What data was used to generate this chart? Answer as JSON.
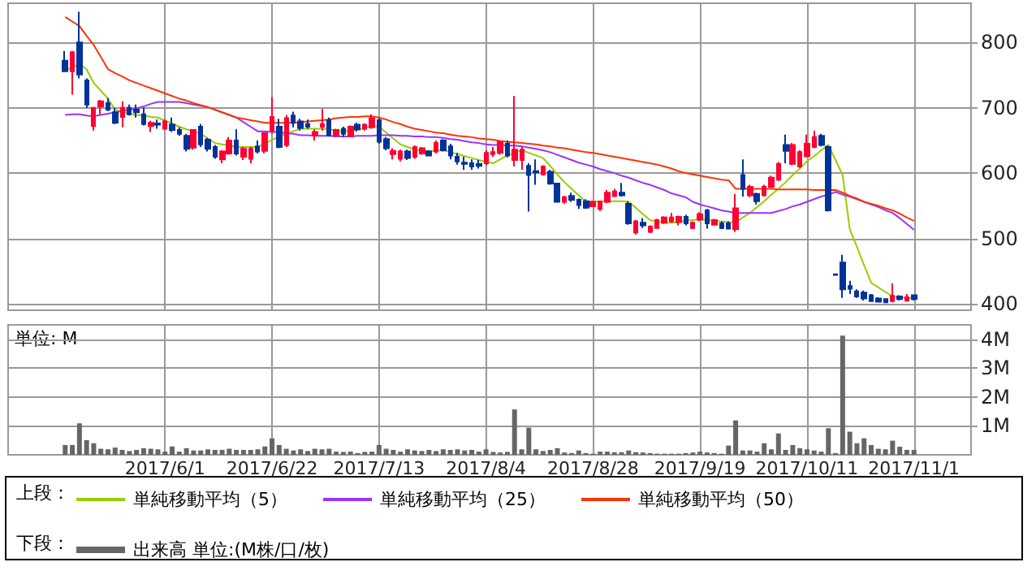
{
  "chart_data": [
    {
      "type": "candlestick",
      "legend_title": "上段：",
      "legend": "bottom",
      "grid": true,
      "tick_labels": "y",
      "categories": [
        null,
        null,
        null,
        null,
        null,
        null,
        null,
        null,
        null,
        null,
        null,
        null,
        null,
        null,
        "2017/6/1",
        null,
        null,
        null,
        null,
        null,
        null,
        null,
        null,
        null,
        null,
        null,
        null,
        null,
        null,
        "2017/6/22",
        null,
        null,
        null,
        null,
        null,
        null,
        null,
        null,
        null,
        null,
        null,
        null,
        null,
        null,
        "2017/7/13",
        null,
        null,
        null,
        null,
        null,
        null,
        null,
        null,
        null,
        null,
        null,
        null,
        null,
        null,
        "2017/8/4",
        null,
        null,
        null,
        null,
        null,
        null,
        null,
        null,
        null,
        null,
        null,
        null,
        null,
        null,
        "2017/8/28",
        null,
        null,
        null,
        null,
        null,
        null,
        null,
        null,
        null,
        null,
        null,
        null,
        null,
        null,
        "2017/9/19",
        null,
        null,
        null,
        null,
        null,
        null,
        null,
        null,
        null,
        null,
        null,
        null,
        null,
        null,
        "2017/10/11",
        null,
        null,
        null,
        null,
        null,
        null,
        null,
        null,
        null,
        null,
        null,
        null,
        null,
        null,
        "2017/11/1"
      ],
      "ylim": [
        390,
        860
      ],
      "yticks": [
        400,
        500,
        600,
        700,
        800
      ],
      "ohlc": [
        [
          772,
          787,
          755,
          756
        ],
        [
          756,
          787,
          720,
          785
        ],
        [
          800,
          847,
          745,
          751
        ],
        [
          742,
          745,
          700,
          705
        ],
        [
          672,
          700,
          665,
          700
        ],
        [
          702,
          712,
          690,
          710
        ],
        [
          707,
          715,
          695,
          697
        ],
        [
          693,
          700,
          675,
          677
        ],
        [
          686,
          710,
          670,
          700
        ],
        [
          700,
          705,
          688,
          690
        ],
        [
          697,
          705,
          685,
          693
        ],
        [
          690,
          700,
          673,
          675
        ],
        [
          672,
          680,
          663,
          677
        ],
        [
          676,
          682,
          668,
          674
        ],
        [
          668,
          682,
          666,
          679
        ],
        [
          674,
          685,
          663,
          666
        ],
        [
          666,
          670,
          657,
          660
        ],
        [
          657,
          660,
          633,
          637
        ],
        [
          639,
          667,
          636,
          666
        ],
        [
          671,
          675,
          640,
          644
        ],
        [
          651,
          654,
          633,
          637
        ],
        [
          640,
          643,
          622,
          625
        ],
        [
          621,
          635,
          615,
          633
        ],
        [
          630,
          655,
          628,
          650
        ],
        [
          650,
          667,
          627,
          630
        ],
        [
          625,
          640,
          620,
          637
        ],
        [
          622,
          640,
          615,
          637
        ],
        [
          641,
          650,
          630,
          633
        ],
        [
          634,
          662,
          630,
          661
        ],
        [
          665,
          716,
          660,
          686
        ],
        [
          671,
          683,
          638,
          640
        ],
        [
          643,
          689,
          640,
          684
        ],
        [
          688,
          694,
          670,
          677
        ],
        [
          679,
          683,
          665,
          669
        ],
        [
          675,
          682,
          668,
          671
        ],
        [
          658,
          667,
          650,
          663
        ],
        [
          671,
          698,
          665,
          675
        ],
        [
          681,
          685,
          656,
          658
        ],
        [
          658,
          668,
          655,
          666
        ],
        [
          668,
          671,
          655,
          660
        ],
        [
          656,
          673,
          655,
          671
        ],
        [
          674,
          677,
          664,
          667
        ],
        [
          668,
          676,
          665,
          674
        ],
        [
          670,
          690,
          668,
          684
        ],
        [
          681,
          684,
          645,
          648
        ],
        [
          652,
          655,
          635,
          638
        ],
        [
          629,
          638,
          621,
          634
        ],
        [
          622,
          636,
          618,
          633
        ],
        [
          633,
          636,
          620,
          623
        ],
        [
          625,
          642,
          622,
          640
        ],
        [
          630,
          640,
          628,
          638
        ],
        [
          633,
          635,
          626,
          627
        ],
        [
          633,
          650,
          630,
          646
        ],
        [
          650,
          652,
          633,
          635
        ],
        [
          641,
          645,
          621,
          627
        ],
        [
          625,
          631,
          613,
          618
        ],
        [
          616,
          625,
          605,
          614
        ],
        [
          615,
          621,
          605,
          610
        ],
        [
          614,
          620,
          607,
          611
        ],
        [
          615,
          635,
          612,
          631
        ],
        [
          629,
          640,
          625,
          632
        ],
        [
          631,
          650,
          628,
          648
        ],
        [
          645,
          650,
          624,
          627
        ],
        [
          620,
          718,
          610,
          636
        ],
        [
          620,
          640,
          605,
          636
        ],
        [
          611,
          615,
          541,
          597
        ],
        [
          603,
          621,
          582,
          601
        ],
        [
          598,
          612,
          596,
          610
        ],
        [
          602,
          605,
          582,
          584
        ],
        [
          584,
          585,
          555,
          556
        ],
        [
          556,
          565,
          553,
          563
        ],
        [
          565,
          570,
          556,
          559
        ],
        [
          559,
          561,
          545,
          551
        ],
        [
          557,
          560,
          545,
          547
        ],
        [
          549,
          558,
          548,
          556
        ],
        [
          545,
          558,
          542,
          556
        ],
        [
          556,
          574,
          554,
          570
        ],
        [
          565,
          576,
          563,
          572
        ],
        [
          570,
          585,
          564,
          566
        ],
        [
          553,
          557,
          521,
          523
        ],
        [
          509,
          528,
          506,
          526
        ],
        [
          524,
          531,
          516,
          520
        ],
        [
          510,
          520,
          508,
          518
        ],
        [
          516,
          530,
          515,
          528
        ],
        [
          524,
          534,
          522,
          532
        ],
        [
          526,
          539,
          524,
          532
        ],
        [
          525,
          535,
          520,
          533
        ],
        [
          533,
          536,
          520,
          523
        ],
        [
          516,
          526,
          514,
          524
        ],
        [
          529,
          540,
          526,
          537
        ],
        [
          543,
          545,
          515,
          523
        ],
        [
          521,
          530,
          520,
          528
        ],
        [
          523,
          526,
          514,
          516
        ],
        [
          523,
          526,
          514,
          515
        ],
        [
          514,
          568,
          510,
          546
        ],
        [
          597,
          621,
          564,
          576
        ],
        [
          566,
          582,
          563,
          579
        ],
        [
          568,
          570,
          552,
          557
        ],
        [
          566,
          582,
          564,
          579
        ],
        [
          579,
          596,
          577,
          593
        ],
        [
          590,
          617,
          588,
          614
        ],
        [
          643,
          659,
          615,
          634
        ],
        [
          614,
          646,
          612,
          643
        ],
        [
          610,
          635,
          608,
          632
        ],
        [
          626,
          659,
          624,
          645
        ],
        [
          640,
          665,
          638,
          655
        ],
        [
          657,
          660,
          641,
          643
        ],
        [
          640,
          642,
          541,
          543
        ],
        [
          445,
          446,
          443,
          444
        ],
        [
          463,
          475,
          409,
          422
        ],
        [
          427,
          435,
          415,
          423
        ],
        [
          419,
          422,
          409,
          411
        ],
        [
          417,
          420,
          405,
          408
        ],
        [
          413,
          415,
          403,
          404
        ],
        [
          408,
          410,
          402,
          403
        ],
        [
          407,
          408,
          401,
          402
        ],
        [
          404,
          431,
          402,
          412
        ],
        [
          411,
          413,
          405,
          407
        ],
        [
          405,
          415,
          403,
          410
        ],
        [
          413,
          414,
          405,
          407
        ]
      ],
      "colors": [
        "#003399",
        "#ff0033",
        "#003399",
        "#003399",
        "#ff0033",
        "#ff0033",
        "#003399",
        "#003399",
        "#ff0033",
        "#003399",
        "#003399",
        "#003399",
        "#ff0033",
        "#003399",
        "#ff0033",
        "#003399",
        "#003399",
        "#003399",
        "#ff0033",
        "#003399",
        "#003399",
        "#003399",
        "#ff0033",
        "#ff0033",
        "#003399",
        "#ff0033",
        "#ff0033",
        "#003399",
        "#ff0033",
        "#ff0033",
        "#003399",
        "#ff0033",
        "#003399",
        "#003399",
        "#003399",
        "#ff0033",
        "#ff0033",
        "#003399",
        "#ff0033",
        "#003399",
        "#ff0033",
        "#003399",
        "#ff0033",
        "#ff0033",
        "#003399",
        "#003399",
        "#ff0033",
        "#ff0033",
        "#003399",
        "#ff0033",
        "#ff0033",
        "#003399",
        "#ff0033",
        "#003399",
        "#003399",
        "#003399",
        "#003399",
        "#003399",
        "#003399",
        "#ff0033",
        "#ff0033",
        "#ff0033",
        "#003399",
        "#ff0033",
        "#ff0033",
        "#003399",
        "#003399",
        "#ff0033",
        "#003399",
        "#003399",
        "#ff0033",
        "#003399",
        "#003399",
        "#003399",
        "#ff0033",
        "#ff0033",
        "#ff0033",
        "#ff0033",
        "#003399",
        "#003399",
        "#ff0033",
        "#003399",
        "#ff0033",
        "#ff0033",
        "#ff0033",
        "#ff0033",
        "#ff0033",
        "#003399",
        "#ff0033",
        "#ff0033",
        "#003399",
        "#ff0033",
        "#003399",
        "#003399",
        "#ff0033",
        "#003399",
        "#ff0033",
        "#003399",
        "#ff0033",
        "#ff0033",
        "#ff0033",
        "#003399",
        "#ff0033",
        "#ff0033",
        "#ff0033",
        "#ff0033",
        "#003399",
        "#003399",
        "#003399",
        "#003399",
        "#003399",
        "#003399",
        "#003399",
        "#003399",
        "#003399",
        "#003399",
        "#ff0033",
        "#003399",
        "#ff0033",
        "#003399"
      ],
      "series": [
        {
          "type": "line",
          "name": "単純移動平均（5）",
          "color": "#99cc00",
          "values": [
            757,
            762,
            767,
            759,
            738,
            726,
            714,
            697,
            694,
            691,
            689,
            688,
            686,
            685,
            680,
            676,
            671,
            667,
            664,
            660,
            653,
            646,
            644,
            642,
            640,
            640,
            640,
            640,
            645,
            651,
            656,
            660,
            664,
            668,
            668,
            668,
            668,
            667,
            665,
            664,
            665,
            666,
            669,
            672,
            671,
            662,
            653,
            644,
            640,
            636,
            633,
            634,
            634,
            635,
            632,
            629,
            626,
            623,
            620,
            617,
            615,
            621,
            627,
            631,
            635,
            631,
            627,
            623,
            611,
            598,
            586,
            576,
            566,
            556,
            556,
            557,
            557,
            557,
            557,
            556,
            547,
            537,
            528,
            526,
            524,
            524,
            525,
            527,
            528,
            529,
            528,
            527,
            526,
            525,
            524,
            532,
            539,
            548,
            557,
            567,
            576,
            586,
            597,
            607,
            618,
            626,
            635,
            643,
            620,
            597,
            514,
            487,
            459,
            432,
            425,
            418,
            411,
            410,
            409,
            408
          ]
        },
        {
          "type": "line",
          "name": "単純移動平均（25）",
          "color": "#9933ff",
          "values": [
            689,
            690,
            690,
            688,
            687,
            689,
            691,
            693,
            695,
            697,
            699,
            702,
            706,
            709,
            709,
            709,
            709,
            707,
            705,
            703,
            701,
            697,
            693,
            689,
            685,
            678,
            671,
            664,
            664,
            663,
            663,
            661,
            660,
            658,
            658,
            657,
            657,
            657,
            656,
            656,
            656,
            657,
            657,
            657,
            658,
            658,
            658,
            657,
            657,
            656,
            656,
            655,
            655,
            654,
            652,
            651,
            649,
            647,
            646,
            644,
            643,
            643,
            642,
            642,
            641,
            639,
            637,
            635,
            632,
            628,
            624,
            620,
            616,
            613,
            610,
            606,
            603,
            600,
            596,
            593,
            589,
            585,
            582,
            578,
            574,
            569,
            566,
            563,
            556,
            552,
            549,
            546,
            543,
            541,
            539,
            539,
            539,
            539,
            539,
            539,
            542,
            545,
            549,
            552,
            556,
            560,
            564,
            567,
            571,
            567,
            564,
            560,
            556,
            552,
            548,
            543,
            539,
            531,
            522,
            513
          ]
        },
        {
          "type": "line",
          "name": "単純移動平均（50）",
          "color": "#ff3300",
          "values": [
            839,
            832,
            825,
            810,
            796,
            778,
            759,
            753,
            748,
            742,
            738,
            734,
            730,
            726,
            722,
            718,
            714,
            711,
            707,
            704,
            701,
            697,
            693,
            689,
            685,
            683,
            681,
            679,
            677,
            677,
            677,
            677,
            677,
            678,
            679,
            680,
            681,
            682,
            684,
            685,
            686,
            686,
            687,
            687,
            685,
            682,
            678,
            675,
            671,
            668,
            666,
            664,
            662,
            661,
            659,
            657,
            656,
            655,
            653,
            652,
            651,
            649,
            648,
            647,
            646,
            645,
            644,
            642,
            641,
            639,
            638,
            636,
            634,
            632,
            631,
            629,
            627,
            625,
            623,
            621,
            619,
            617,
            615,
            613,
            610,
            607,
            603,
            600,
            598,
            596,
            594,
            592,
            590,
            589,
            576,
            576,
            576,
            576,
            576,
            576,
            575,
            575,
            575,
            575,
            575,
            574,
            574,
            574,
            574,
            570,
            565,
            561,
            556,
            553,
            550,
            546,
            543,
            538,
            532,
            527
          ]
        }
      ]
    },
    {
      "type": "bar",
      "legend_title": "下段：",
      "legend": "bottom",
      "grid": true,
      "annotations": [
        "単位: M"
      ],
      "categories": [
        null,
        null,
        null,
        null,
        null,
        null,
        null,
        null,
        null,
        null,
        null,
        null,
        null,
        null,
        "2017/6/1",
        null,
        null,
        null,
        null,
        null,
        null,
        null,
        null,
        null,
        null,
        null,
        null,
        null,
        null,
        "2017/6/22",
        null,
        null,
        null,
        null,
        null,
        null,
        null,
        null,
        null,
        null,
        null,
        null,
        null,
        null,
        "2017/7/13",
        null,
        null,
        null,
        null,
        null,
        null,
        null,
        null,
        null,
        null,
        null,
        null,
        null,
        null,
        "2017/8/4",
        null,
        null,
        null,
        null,
        null,
        null,
        null,
        null,
        null,
        null,
        null,
        null,
        null,
        null,
        "2017/8/28",
        null,
        null,
        null,
        null,
        null,
        null,
        null,
        null,
        null,
        null,
        null,
        null,
        null,
        null,
        "2017/9/19",
        null,
        null,
        null,
        null,
        null,
        null,
        null,
        null,
        null,
        null,
        null,
        null,
        null,
        null,
        "2017/10/11",
        null,
        null,
        null,
        null,
        null,
        null,
        null,
        null,
        null,
        null,
        null,
        null,
        null,
        null,
        "2017/11/1"
      ],
      "ylim": [
        0,
        4.5
      ],
      "yticks": [
        {
          "value": 1,
          "label": "1M"
        },
        {
          "value": 2,
          "label": "2M"
        },
        {
          "value": 3,
          "label": "3M"
        },
        {
          "value": 4,
          "label": "4M"
        }
      ],
      "series": [
        {
          "name": "出来高 単位:(M株/口/枚)",
          "color": "#666666",
          "values": [
            0.34,
            0.34,
            1.09,
            0.51,
            0.4,
            0.21,
            0.19,
            0.25,
            0.17,
            0.13,
            0.17,
            0.23,
            0.21,
            0.19,
            0.11,
            0.29,
            0.11,
            0.23,
            0.15,
            0.15,
            0.19,
            0.17,
            0.17,
            0.21,
            0.17,
            0.17,
            0.17,
            0.19,
            0.29,
            0.57,
            0.34,
            0.21,
            0.15,
            0.19,
            0.13,
            0.21,
            0.19,
            0.21,
            0.11,
            0.1,
            0.11,
            0.06,
            0.1,
            0.11,
            0.34,
            0.21,
            0.17,
            0.11,
            0.19,
            0.15,
            0.13,
            0.17,
            0.13,
            0.19,
            0.17,
            0.19,
            0.15,
            0.17,
            0.11,
            0.19,
            0.1,
            0.08,
            0.1,
            1.57,
            0.19,
            0.94,
            0.19,
            0.13,
            0.17,
            0.23,
            0.08,
            0.06,
            0.15,
            0.06,
            0.04,
            0.11,
            0.11,
            0.09,
            0.09,
            0.15,
            0.09,
            0.08,
            0.06,
            0.04,
            0.04,
            0.04,
            0.04,
            0.06,
            0.08,
            0.11,
            0.08,
            0.06,
            0.04,
            0.32,
            1.19,
            0.15,
            0.15,
            0.11,
            0.4,
            0.19,
            0.74,
            0.17,
            0.34,
            0.23,
            0.19,
            0.15,
            0.11,
            0.92,
            0.06,
            4.13,
            0.8,
            0.4,
            0.57,
            0.34,
            0.21,
            0.19,
            0.49,
            0.28,
            0.17,
            0.17
          ]
        }
      ]
    }
  ]
}
